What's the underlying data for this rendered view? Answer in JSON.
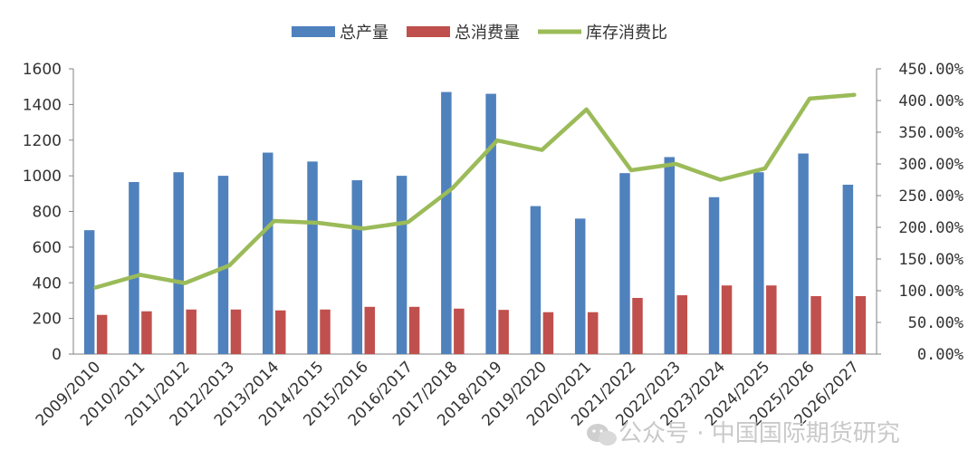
{
  "chart_data": {
    "type": "bar",
    "categories": [
      "2009/2010",
      "2010/2011",
      "2011/2012",
      "2012/2013",
      "2013/2014",
      "2014/2015",
      "2015/2016",
      "2016/2017",
      "2017/2018",
      "2018/2019",
      "2019/2020",
      "2020/2021",
      "2021/2022",
      "2022/2023",
      "2023/2024",
      "2024/2025",
      "2025/2026",
      "2026/2027"
    ],
    "series": [
      {
        "name": "总产量",
        "type": "bar",
        "axis": "left",
        "color": "#4f81bd",
        "values": [
          695,
          965,
          1020,
          1000,
          1130,
          1080,
          975,
          1000,
          1470,
          1460,
          830,
          760,
          1015,
          1105,
          880,
          1020,
          1125,
          950
        ]
      },
      {
        "name": "总消费量",
        "type": "bar",
        "axis": "left",
        "color": "#c0504d",
        "values": [
          220,
          240,
          250,
          250,
          245,
          250,
          265,
          265,
          255,
          248,
          235,
          235,
          315,
          330,
          385,
          385,
          325,
          325
        ]
      },
      {
        "name": "库存消费比",
        "type": "line",
        "axis": "right",
        "color": "#9bbb59",
        "values": [
          105,
          125,
          112,
          140,
          210,
          207,
          198,
          208,
          262,
          337,
          322,
          386,
          290,
          300,
          275,
          293,
          403,
          409
        ]
      }
    ],
    "left_axis": {
      "min": 0,
      "max": 1600,
      "step": 200,
      "ticks": [
        "0",
        "200",
        "400",
        "600",
        "800",
        "1000",
        "1200",
        "1400",
        "1600"
      ]
    },
    "right_axis": {
      "min": 0,
      "max": 450,
      "step": 50,
      "ticks": [
        "0.00%",
        "50.00%",
        "100.00%",
        "150.00%",
        "200.00%",
        "250.00%",
        "300.00%",
        "350.00%",
        "400.00%",
        "450.00%"
      ]
    },
    "legend_position": "top-center",
    "grid": false
  },
  "watermark": {
    "icon": "wechat-icon",
    "text": "公众号 · 中国国际期货研究"
  }
}
